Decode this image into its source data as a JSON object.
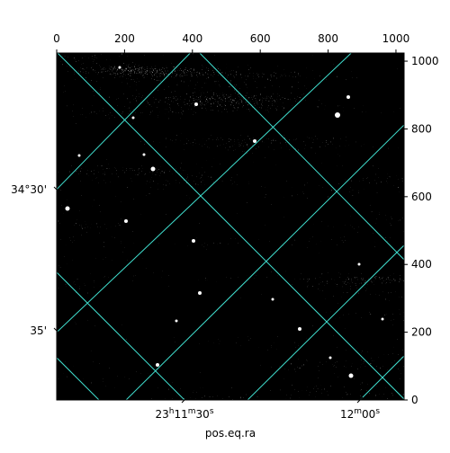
{
  "chart_data": {
    "type": "image",
    "x_label": "pos.eq.ra",
    "xlim": [
      0,
      1024
    ],
    "xticks": [
      0,
      200,
      400,
      600,
      800,
      1000
    ],
    "ylim": [
      0,
      1024
    ],
    "yticks": [
      0,
      200,
      400,
      600,
      800,
      1000
    ],
    "ra_labels": [
      [
        "23",
        "h",
        "11",
        "m",
        "30",
        "s"
      ],
      [
        "12",
        "m",
        "00",
        "s"
      ]
    ],
    "dec_labels": [
      "34°30'",
      "35'"
    ],
    "grid_color": "#40e0d0"
  }
}
